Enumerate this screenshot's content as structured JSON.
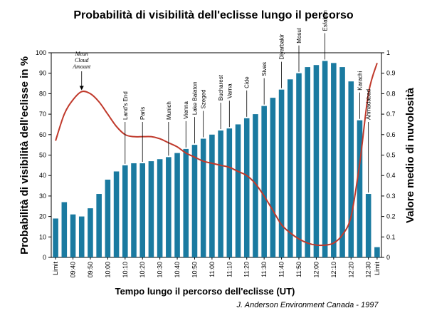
{
  "chart_data": {
    "type": "bar",
    "title": "Probabilità di visibilità dell'eclisse lungo il percorso",
    "xlabel": "Tempo lungo il percorso dell'eclisse (UT)",
    "ylabel": "Probabilità di visibilità dell'eclisse in %",
    "ylabel_right": "Valore medio di nuvolosità",
    "credit": "J. Anderson Environment Canada - 1997",
    "ylim": [
      0,
      100
    ],
    "ylim_right": [
      0,
      1
    ],
    "y_ticks": [
      0,
      10,
      20,
      30,
      40,
      50,
      60,
      70,
      80,
      90,
      100
    ],
    "y_ticks_right": [
      "0",
      "0.1",
      "0.2",
      "0.3",
      "0.4",
      "0.5",
      "0.6",
      "0.7",
      "0.8",
      "0.9",
      "1"
    ],
    "x_tick_labels": [
      "Limit",
      "09:40",
      "09:50",
      "10:00",
      "10:10",
      "10:20",
      "10:30",
      "10:40",
      "10:50",
      "11:00",
      "11:10",
      "11:20",
      "11:30",
      "11:40",
      "11:50",
      "12:00",
      "12:10",
      "12:20",
      "12:30",
      "Limit"
    ],
    "bar_color": "#1a7aa0",
    "line_color": "#c0392b",
    "series": [
      {
        "type": "bar",
        "values": [
          19,
          27,
          21,
          20,
          24,
          31,
          38,
          42,
          45,
          46,
          46,
          47,
          48,
          49,
          51,
          53,
          55,
          58,
          60,
          62,
          63,
          65,
          68,
          70,
          74,
          78,
          82,
          87,
          90,
          93,
          94,
          96,
          95,
          93,
          86,
          67,
          31,
          5
        ]
      },
      {
        "type": "line",
        "axis": "right",
        "x": [
          0,
          1,
          2,
          3,
          4,
          5,
          6,
          7,
          8,
          9,
          10,
          11,
          12,
          13,
          14,
          15,
          16,
          17,
          18,
          19,
          20,
          21,
          22,
          23,
          24,
          25,
          26,
          27,
          28,
          29,
          30,
          31,
          32,
          33,
          34,
          35,
          36,
          37
        ],
        "values": [
          0.57,
          0.7,
          0.77,
          0.81,
          0.8,
          0.76,
          0.7,
          0.64,
          0.6,
          0.59,
          0.59,
          0.59,
          0.58,
          0.56,
          0.54,
          0.51,
          0.49,
          0.47,
          0.46,
          0.45,
          0.44,
          0.42,
          0.4,
          0.36,
          0.3,
          0.23,
          0.16,
          0.12,
          0.09,
          0.07,
          0.06,
          0.06,
          0.07,
          0.11,
          0.2,
          0.46,
          0.8,
          0.95
        ]
      }
    ],
    "annotations": [
      {
        "text": "Mean Cloud Amount",
        "bar": 3
      },
      {
        "text": "Land's End",
        "bar": 8
      },
      {
        "text": "Paris",
        "bar": 10
      },
      {
        "text": "Munich",
        "bar": 13
      },
      {
        "text": "Vienna",
        "bar": 15
      },
      {
        "text": "Lake Balaton",
        "bar": 16
      },
      {
        "text": "Szeged",
        "bar": 17
      },
      {
        "text": "Bucharest",
        "bar": 19
      },
      {
        "text": "Varna",
        "bar": 20
      },
      {
        "text": "Cide",
        "bar": 22
      },
      {
        "text": "Sivas",
        "bar": 24
      },
      {
        "text": "Diyarbakir",
        "bar": 26
      },
      {
        "text": "Mosul",
        "bar": 28
      },
      {
        "text": "Esfahan",
        "bar": 31
      },
      {
        "text": "Karachi",
        "bar": 35
      },
      {
        "text": "Ahmadabad",
        "bar": 36
      }
    ]
  }
}
